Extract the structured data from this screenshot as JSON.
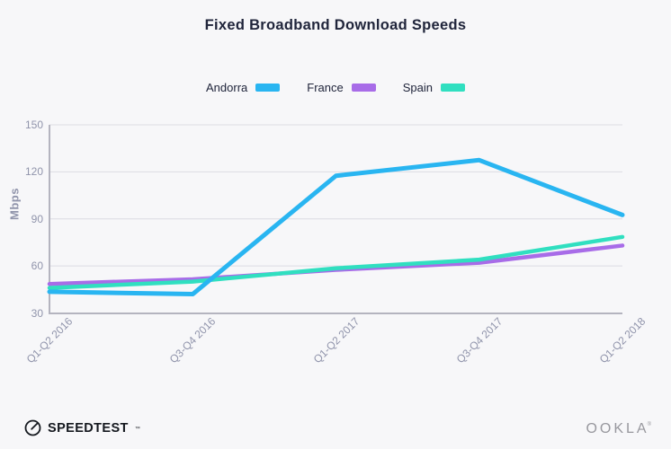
{
  "chart_data": {
    "type": "line",
    "title": "Fixed Broadband Download Speeds",
    "categories": [
      "Q1-Q2 2016",
      "Q3-Q4 2016",
      "Q1-Q2 2017",
      "Q3-Q4 2017",
      "Q1-Q2 2018"
    ],
    "series": [
      {
        "name": "Andorra",
        "color": "#29b5f1",
        "values": [
          43.5,
          42,
          117.5,
          127.5,
          92.5
        ]
      },
      {
        "name": "France",
        "color": "#a86ce8",
        "values": [
          48.5,
          51.5,
          57.5,
          62,
          73
        ]
      },
      {
        "name": "Spain",
        "color": "#30dfc0",
        "values": [
          46,
          50,
          58.5,
          64,
          78.5
        ]
      }
    ],
    "xlabel": "",
    "ylabel": "Mbps",
    "yticks": [
      30,
      60,
      90,
      120,
      150
    ],
    "ylim": [
      30,
      150
    ],
    "grid": true,
    "legend_position": "top",
    "grid_color": "#dcdce3",
    "axis_color": "#b4b4bf",
    "tick_label_color": "#9094ab"
  },
  "footer": {
    "speedtest_label": "SPEEDTEST",
    "speedtest_mark": "™",
    "ookla_label": "OOKLA",
    "ookla_mark": "®"
  }
}
